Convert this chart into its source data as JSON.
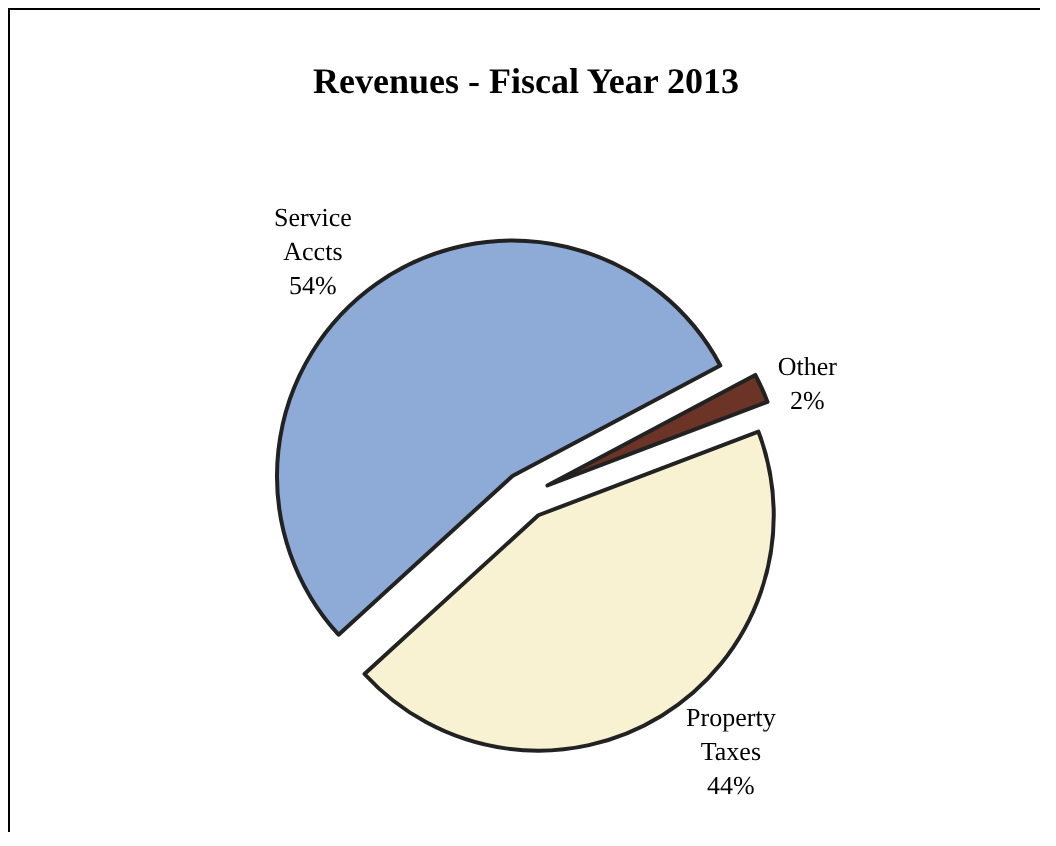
{
  "chart_data": {
    "type": "pie",
    "title": "Revenues - Fiscal Year 2013",
    "categories": [
      "Other",
      "Property Taxes",
      "Service Accts"
    ],
    "values": [
      2,
      44,
      54
    ],
    "value_labels": [
      "2%",
      "44%",
      "54%"
    ],
    "colors": [
      "#6b3426",
      "#f8f2d2",
      "#8eaad6"
    ],
    "legend": false
  }
}
